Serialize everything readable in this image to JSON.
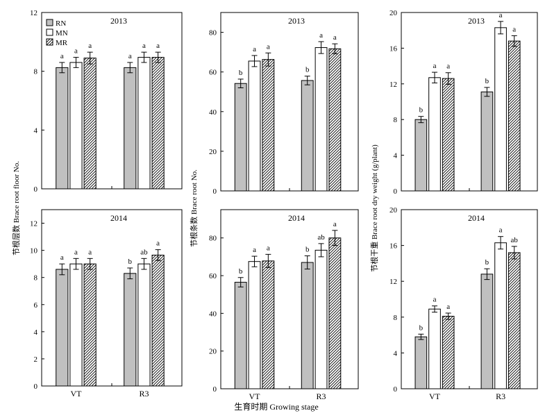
{
  "figure": {
    "ylabel_left": "节根层数 Brace root floor No.",
    "ylabel_middle": "节根条数 Brace root No.",
    "ylabel_right": "节根干重 Brace root dry weight (g/plant)",
    "xlabel": "生育时期 Growing stage"
  },
  "legend": {
    "placement": "top-left",
    "entries": [
      {
        "name": "RN",
        "pattern": "gray"
      },
      {
        "name": "MN",
        "pattern": "white"
      },
      {
        "name": "MR",
        "pattern": "hatch"
      }
    ]
  },
  "colors": {
    "gray": "#c0c0c0",
    "white": "#ffffff",
    "stroke": "#000000"
  },
  "chart_data": [
    {
      "id": "floor2013",
      "type": "bar",
      "title": "2013",
      "categories": [
        "VT",
        "R3"
      ],
      "ylim": [
        0,
        12
      ],
      "yticks": [
        0,
        4,
        8,
        12
      ],
      "series": [
        {
          "name": "RN",
          "values": [
            8.25,
            8.25
          ],
          "errors": [
            0.35,
            0.35
          ],
          "letters": [
            "a",
            "a"
          ]
        },
        {
          "name": "MN",
          "values": [
            8.6,
            8.95
          ],
          "errors": [
            0.35,
            0.35
          ],
          "letters": [
            "a",
            "a"
          ]
        },
        {
          "name": "MR",
          "values": [
            8.9,
            8.95
          ],
          "errors": [
            0.4,
            0.35
          ],
          "letters": [
            "a",
            "a"
          ]
        }
      ]
    },
    {
      "id": "count2013",
      "type": "bar",
      "title": "2013",
      "categories": [
        "VT",
        "R3"
      ],
      "ylim": [
        0,
        90
      ],
      "yticks": [
        0,
        20,
        40,
        60,
        80
      ],
      "series": [
        {
          "name": "RN",
          "values": [
            54.2,
            55.7
          ],
          "errors": [
            2.2,
            2.2
          ],
          "letters": [
            "b",
            "b"
          ]
        },
        {
          "name": "MN",
          "values": [
            65.5,
            72.3
          ],
          "errors": [
            2.8,
            3.0
          ],
          "letters": [
            "a",
            "a"
          ]
        },
        {
          "name": "MR",
          "values": [
            66.3,
            71.7
          ],
          "errors": [
            3.3,
            2.5
          ],
          "letters": [
            "a",
            "a"
          ]
        }
      ]
    },
    {
      "id": "weight2013",
      "type": "bar",
      "title": "2013",
      "categories": [
        "VT",
        "R3"
      ],
      "ylim": [
        0,
        20
      ],
      "yticks": [
        0,
        4,
        8,
        12,
        16,
        20
      ],
      "series": [
        {
          "name": "RN",
          "values": [
            8.0,
            11.1
          ],
          "errors": [
            0.35,
            0.5
          ],
          "letters": [
            "b",
            "b"
          ]
        },
        {
          "name": "MN",
          "values": [
            12.7,
            18.3
          ],
          "errors": [
            0.6,
            0.7
          ],
          "letters": [
            "a",
            "a"
          ]
        },
        {
          "name": "MR",
          "values": [
            12.6,
            16.8
          ],
          "errors": [
            0.65,
            0.6
          ],
          "letters": [
            "a",
            "a"
          ]
        }
      ]
    },
    {
      "id": "floor2014",
      "type": "bar",
      "title": "2014",
      "categories": [
        "VT",
        "R3"
      ],
      "ylim": [
        0,
        13
      ],
      "yticks": [
        0,
        2,
        4,
        6,
        8,
        10,
        12
      ],
      "series": [
        {
          "name": "RN",
          "values": [
            8.6,
            8.3
          ],
          "errors": [
            0.4,
            0.4
          ],
          "letters": [
            "a",
            "b"
          ]
        },
        {
          "name": "MN",
          "values": [
            9.0,
            9.0
          ],
          "errors": [
            0.4,
            0.4
          ],
          "letters": [
            "a",
            "ab"
          ]
        },
        {
          "name": "MR",
          "values": [
            9.0,
            9.65
          ],
          "errors": [
            0.4,
            0.4
          ],
          "letters": [
            "a",
            "a"
          ]
        }
      ]
    },
    {
      "id": "count2014",
      "type": "bar",
      "title": "2014",
      "categories": [
        "VT",
        "R3"
      ],
      "ylim": [
        0,
        95
      ],
      "yticks": [
        0,
        20,
        40,
        60,
        80
      ],
      "series": [
        {
          "name": "RN",
          "values": [
            56.5,
            67.0
          ],
          "errors": [
            2.5,
            3.5
          ],
          "letters": [
            "b",
            "b"
          ]
        },
        {
          "name": "MN",
          "values": [
            67.5,
            73.5
          ],
          "errors": [
            2.8,
            3.5
          ],
          "letters": [
            "a",
            "ab"
          ]
        },
        {
          "name": "MR",
          "values": [
            67.8,
            80.0
          ],
          "errors": [
            3.5,
            4.0
          ],
          "letters": [
            "a",
            "a"
          ]
        }
      ]
    },
    {
      "id": "weight2014",
      "type": "bar",
      "title": "2014",
      "categories": [
        "VT",
        "R3"
      ],
      "ylim": [
        0,
        20
      ],
      "yticks": [
        0,
        4,
        8,
        12,
        16,
        20
      ],
      "series": [
        {
          "name": "RN",
          "values": [
            5.8,
            12.8
          ],
          "errors": [
            0.3,
            0.6
          ],
          "letters": [
            "b",
            "b"
          ]
        },
        {
          "name": "MN",
          "values": [
            8.9,
            16.3
          ],
          "errors": [
            0.35,
            0.7
          ],
          "letters": [
            "a",
            "a"
          ]
        },
        {
          "name": "MR",
          "values": [
            8.1,
            15.2
          ],
          "errors": [
            0.35,
            0.7
          ],
          "letters": [
            "a",
            "ab"
          ]
        }
      ]
    }
  ]
}
